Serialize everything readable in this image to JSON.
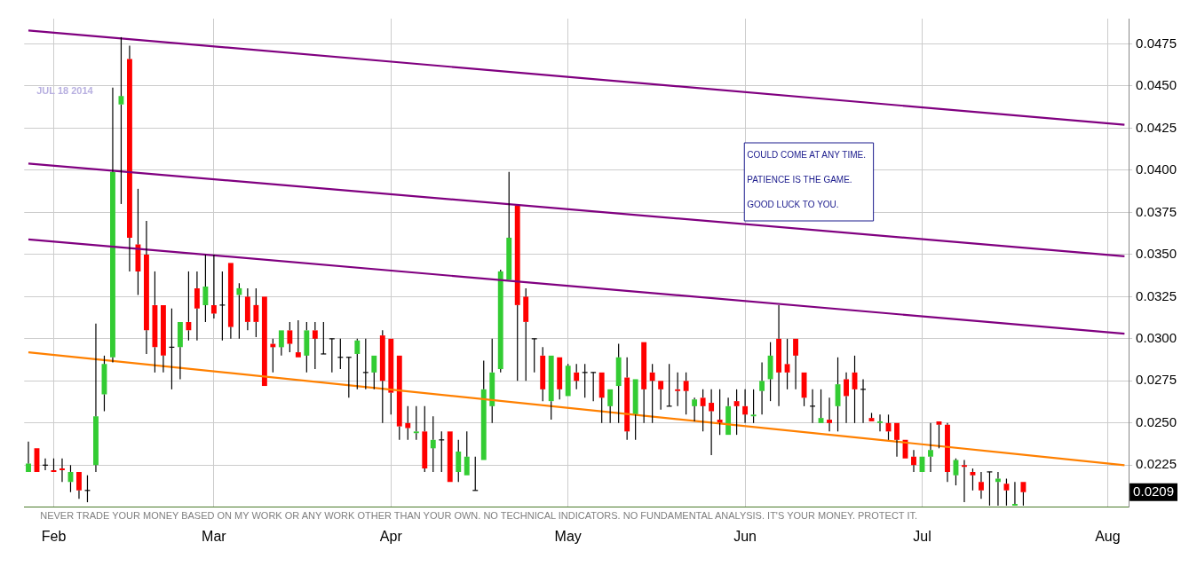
{
  "chart_data": {
    "type": "candlestick",
    "categories": [
      null,
      null,
      null,
      "Feb",
      null,
      null,
      null,
      null,
      null,
      null,
      null,
      null,
      null,
      null,
      null,
      null,
      null,
      null,
      null,
      null,
      null,
      null,
      "Mar",
      null,
      null,
      null,
      null,
      null,
      null,
      null,
      null,
      null,
      null,
      null,
      null,
      null,
      null,
      null,
      null,
      null,
      null,
      null,
      null,
      "Apr",
      null,
      null,
      null,
      null,
      null,
      null,
      null,
      null,
      null,
      null,
      null,
      null,
      null,
      null,
      null,
      null,
      null,
      null,
      null,
      null,
      "May",
      null,
      null,
      null,
      null,
      null,
      null,
      null,
      null,
      null,
      null,
      null,
      null,
      null,
      null,
      null,
      null,
      null,
      null,
      null,
      null,
      "Jun",
      null,
      null,
      null,
      null,
      null,
      null,
      null,
      null,
      null,
      null,
      null,
      null,
      null,
      null,
      null,
      null,
      null,
      null,
      null,
      null,
      "Jul",
      null,
      null,
      null,
      null,
      null,
      null,
      null,
      null,
      null,
      null,
      null,
      null,
      null,
      null,
      null,
      null,
      null,
      null,
      null,
      null,
      null,
      "Aug",
      null,
      null
    ],
    "ohlc": [
      [
        0.0221,
        0.0239,
        0.0221,
        0.0226
      ],
      [
        0.0235,
        0.0235,
        0.0221,
        0.0221
      ],
      [
        0.0225,
        0.0229,
        0.0222,
        0.0225
      ],
      [
        0.0222,
        0.0229,
        0.0221,
        0.0221
      ],
      [
        0.0223,
        0.0229,
        0.0215,
        0.0222
      ],
      [
        0.0215,
        0.0225,
        0.0209,
        0.0221
      ],
      [
        0.0221,
        0.0221,
        0.0205,
        0.021
      ],
      [
        0.021,
        0.0219,
        0.0203,
        0.021
      ],
      [
        0.0225,
        0.0309,
        0.0221,
        0.0254
      ],
      [
        0.0267,
        0.029,
        0.0257,
        0.0285
      ],
      [
        0.0289,
        0.0449,
        0.0286,
        0.0399
      ],
      [
        0.0439,
        0.0479,
        0.038,
        0.0444
      ],
      [
        0.0466,
        0.0474,
        0.034,
        0.036
      ],
      [
        0.0356,
        0.0389,
        0.0326,
        0.034
      ],
      [
        0.035,
        0.037,
        0.0291,
        0.0305
      ],
      [
        0.032,
        0.034,
        0.028,
        0.0295
      ],
      [
        0.032,
        0.032,
        0.028,
        0.029
      ],
      [
        0.0295,
        0.0318,
        0.027,
        0.0295
      ],
      [
        0.0295,
        0.031,
        0.0276,
        0.031
      ],
      [
        0.031,
        0.034,
        0.0299,
        0.0305
      ],
      [
        0.033,
        0.034,
        0.0299,
        0.0318
      ],
      [
        0.032,
        0.035,
        0.031,
        0.0331
      ],
      [
        0.032,
        0.035,
        0.0312,
        0.0315
      ],
      [
        0.032,
        0.034,
        0.0299,
        0.032
      ],
      [
        0.0345,
        0.0345,
        0.03,
        0.0307
      ],
      [
        0.0326,
        0.0333,
        0.03,
        0.033
      ],
      [
        0.0325,
        0.033,
        0.0305,
        0.031
      ],
      [
        0.032,
        0.033,
        0.0301,
        0.031
      ],
      [
        0.0325,
        0.0325,
        0.0272,
        0.0272
      ],
      [
        0.0297,
        0.03,
        0.028,
        0.0295
      ],
      [
        0.0295,
        0.0305,
        0.029,
        0.0305
      ],
      [
        0.0305,
        0.031,
        0.0292,
        0.0297
      ],
      [
        0.0292,
        0.0311,
        0.0289,
        0.0289
      ],
      [
        0.029,
        0.031,
        0.028,
        0.0305
      ],
      [
        0.0305,
        0.031,
        0.0282,
        0.03
      ],
      [
        0.0291,
        0.031,
        0.0291,
        0.0291
      ],
      [
        0.03,
        0.03,
        0.028,
        0.03
      ],
      [
        0.0289,
        0.03,
        0.0282,
        0.0289
      ],
      [
        0.0289,
        0.0289,
        0.0265,
        0.0289
      ],
      [
        0.0291,
        0.03,
        0.027,
        0.0299
      ],
      [
        0.028,
        0.03,
        0.027,
        0.028
      ],
      [
        0.028,
        0.029,
        0.027,
        0.029
      ],
      [
        0.0302,
        0.0305,
        0.025,
        0.0275
      ],
      [
        0.03,
        0.03,
        0.0255,
        0.0268
      ],
      [
        0.029,
        0.029,
        0.024,
        0.0248
      ],
      [
        0.025,
        0.026,
        0.024,
        0.0247
      ],
      [
        0.0244,
        0.026,
        0.024,
        0.0245
      ],
      [
        0.0245,
        0.026,
        0.0221,
        0.0223
      ],
      [
        0.0235,
        0.0254,
        0.0221,
        0.024
      ],
      [
        0.024,
        0.0245,
        0.0221,
        0.024
      ],
      [
        0.0245,
        0.0245,
        0.0215,
        0.0215
      ],
      [
        0.0221,
        0.024,
        0.0215,
        0.0233
      ],
      [
        0.0219,
        0.0245,
        0.0219,
        0.023
      ],
      [
        0.021,
        0.023,
        0.021,
        0.021
      ],
      [
        0.0228,
        0.0287,
        0.0228,
        0.027
      ],
      [
        0.026,
        0.03,
        0.025,
        0.028
      ],
      [
        0.0282,
        0.0341,
        0.028,
        0.034
      ],
      [
        0.0335,
        0.0399,
        0.0335,
        0.036
      ],
      [
        0.0379,
        0.0379,
        0.0275,
        0.032
      ],
      [
        0.0325,
        0.033,
        0.0275,
        0.031
      ],
      [
        0.03,
        0.03,
        0.028,
        0.03
      ],
      [
        0.029,
        0.0295,
        0.0263,
        0.027
      ],
      [
        0.0263,
        0.029,
        0.0252,
        0.029
      ],
      [
        0.0289,
        0.0289,
        0.0264,
        0.027
      ],
      [
        0.0266,
        0.0285,
        0.0266,
        0.0284
      ],
      [
        0.028,
        0.0285,
        0.027,
        0.0275
      ],
      [
        0.028,
        0.0285,
        0.0265,
        0.028
      ],
      [
        0.028,
        0.028,
        0.0263,
        0.028
      ],
      [
        0.028,
        0.028,
        0.025,
        0.0265
      ],
      [
        0.026,
        0.027,
        0.025,
        0.027
      ],
      [
        0.0272,
        0.0297,
        0.025,
        0.0289
      ],
      [
        0.0277,
        0.0289,
        0.024,
        0.0245
      ],
      [
        0.0255,
        0.0276,
        0.024,
        0.0276
      ],
      [
        0.0298,
        0.0298,
        0.025,
        0.027
      ],
      [
        0.028,
        0.0285,
        0.025,
        0.0275
      ],
      [
        0.0275,
        0.0275,
        0.0258,
        0.027
      ],
      [
        0.026,
        0.0285,
        0.026,
        0.026
      ],
      [
        0.027,
        0.028,
        0.026,
        0.0269
      ],
      [
        0.0275,
        0.028,
        0.0255,
        0.0269
      ],
      [
        0.026,
        0.0265,
        0.0251,
        0.0264
      ],
      [
        0.0265,
        0.027,
        0.0245,
        0.026
      ],
      [
        0.0262,
        0.027,
        0.0231,
        0.0257
      ],
      [
        0.0252,
        0.027,
        0.0243,
        0.025
      ],
      [
        0.0243,
        0.0265,
        0.0243,
        0.026
      ],
      [
        0.0263,
        0.027,
        0.0243,
        0.026
      ],
      [
        0.026,
        0.027,
        0.025,
        0.0255
      ],
      [
        0.0254,
        0.027,
        0.025,
        0.0255
      ],
      [
        0.0269,
        0.0286,
        0.0255,
        0.0275
      ],
      [
        0.0276,
        0.0298,
        0.0263,
        0.029
      ],
      [
        0.03,
        0.032,
        0.026,
        0.028
      ],
      [
        0.0285,
        0.03,
        0.027,
        0.028
      ],
      [
        0.03,
        0.03,
        0.027,
        0.029
      ],
      [
        0.028,
        0.028,
        0.026,
        0.0265
      ],
      [
        0.026,
        0.027,
        0.025,
        0.026
      ],
      [
        0.025,
        0.027,
        0.025,
        0.0253
      ],
      [
        0.0252,
        0.0265,
        0.0245,
        0.025
      ],
      [
        0.026,
        0.0289,
        0.0245,
        0.0273
      ],
      [
        0.0276,
        0.028,
        0.025,
        0.0266
      ],
      [
        0.028,
        0.029,
        0.025,
        0.027
      ],
      [
        0.027,
        0.0276,
        0.025,
        0.027
      ],
      [
        0.0253,
        0.0256,
        0.0251,
        0.0251
      ],
      [
        0.025,
        0.0255,
        0.0245,
        0.0251
      ],
      [
        0.025,
        0.0255,
        0.024,
        0.0245
      ],
      [
        0.025,
        0.025,
        0.023,
        0.024
      ],
      [
        0.024,
        0.024,
        0.0229,
        0.0229
      ],
      [
        0.023,
        0.0234,
        0.0221,
        0.0225
      ],
      [
        0.0221,
        0.023,
        0.0221,
        0.023
      ],
      [
        0.023,
        0.025,
        0.0221,
        0.0234
      ],
      [
        0.0251,
        0.0251,
        0.0235,
        0.0249
      ],
      [
        0.0249,
        0.025,
        0.0215,
        0.0221
      ],
      [
        0.0219,
        0.0229,
        0.0213,
        0.0228
      ],
      [
        0.0225,
        0.0228,
        0.0203,
        0.0224
      ],
      [
        0.0221,
        0.0223,
        0.021,
        0.0219
      ],
      [
        0.0215,
        0.0221,
        0.0205,
        0.021
      ],
      [
        0.0221,
        0.0221,
        0.0201,
        0.0221
      ],
      [
        0.0215,
        0.0221,
        0.0201,
        0.0217
      ],
      [
        0.0214,
        0.0217,
        0.0201,
        0.021
      ],
      [
        0.0201,
        0.0215,
        0.0201,
        0.0202
      ],
      [
        0.0215,
        0.0215,
        0.0201,
        0.0209
      ],
      null,
      null,
      null,
      null,
      null,
      null,
      null,
      null,
      null,
      null,
      null,
      null
    ],
    "colors": [
      "#33cc33",
      "#ff0000",
      "#000000",
      "#ff0000",
      "#ff0000",
      "#33cc33",
      "#ff0000",
      "#000000",
      "#33cc33",
      "#33cc33",
      "#33cc33",
      "#33cc33",
      "#ff0000",
      "#ff0000",
      "#ff0000",
      "#ff0000",
      "#ff0000",
      "#000000",
      "#33cc33",
      "#ff0000",
      "#ff0000",
      "#33cc33",
      "#ff0000",
      "#000000",
      "#ff0000",
      "#33cc33",
      "#ff0000",
      "#ff0000",
      "#ff0000",
      "#ff0000",
      "#33cc33",
      "#ff0000",
      "#ff0000",
      "#33cc33",
      "#ff0000",
      "#000000",
      "#000000",
      "#000000",
      "#000000",
      "#33cc33",
      "#000000",
      "#33cc33",
      "#ff0000",
      "#ff0000",
      "#ff0000",
      "#ff0000",
      "#33cc33",
      "#ff0000",
      "#33cc33",
      "#000000",
      "#ff0000",
      "#33cc33",
      "#33cc33",
      "#000000",
      "#33cc33",
      "#33cc33",
      "#33cc33",
      "#33cc33",
      "#ff0000",
      "#ff0000",
      "#000000",
      "#ff0000",
      "#33cc33",
      "#ff0000",
      "#33cc33",
      "#ff0000",
      "#000000",
      "#000000",
      "#ff0000",
      "#33cc33",
      "#33cc33",
      "#ff0000",
      "#33cc33",
      "#ff0000",
      "#ff0000",
      "#ff0000",
      "#000000",
      "#ff0000",
      "#ff0000",
      "#33cc33",
      "#ff0000",
      "#ff0000",
      "#ff0000",
      "#33cc33",
      "#ff0000",
      "#ff0000",
      "#33cc33",
      "#33cc33",
      "#33cc33",
      "#ff0000",
      "#ff0000",
      "#ff0000",
      "#ff0000",
      "#000000",
      "#33cc33",
      "#ff0000",
      "#33cc33",
      "#ff0000",
      "#ff0000",
      "#000000",
      "#ff0000",
      "#33cc33",
      "#ff0000",
      "#ff0000",
      "#ff0000",
      "#ff0000",
      "#33cc33",
      "#33cc33",
      "#ff0000",
      "#ff0000",
      "#33cc33",
      "#ff0000",
      "#ff0000",
      "#ff0000",
      "#000000",
      "#33cc33",
      "#ff0000",
      "#33cc33",
      "#ff0000",
      null,
      null,
      null,
      null,
      null,
      null,
      null,
      null,
      null,
      null,
      null,
      null
    ],
    "series": [
      {
        "type": "line",
        "color": "#800080",
        "values": [
          0.0483,
          null,
          null,
          null,
          null,
          null,
          null,
          null,
          null,
          null,
          null,
          null,
          null,
          null,
          null,
          null,
          null,
          null,
          null,
          null,
          null,
          null,
          null,
          null,
          null,
          null,
          null,
          null,
          null,
          null,
          null,
          null,
          null,
          null,
          null,
          null,
          null,
          null,
          null,
          null,
          null,
          null,
          null,
          null,
          null,
          null,
          null,
          null,
          null,
          null,
          null,
          null,
          null,
          null,
          null,
          null,
          null,
          null,
          null,
          null,
          null,
          null,
          null,
          null,
          null,
          null,
          null,
          null,
          null,
          null,
          null,
          null,
          null,
          null,
          null,
          null,
          null,
          null,
          null,
          null,
          null,
          null,
          null,
          null,
          null,
          null,
          null,
          null,
          null,
          null,
          null,
          null,
          null,
          null,
          null,
          null,
          null,
          null,
          null,
          null,
          null,
          null,
          null,
          null,
          null,
          null,
          null,
          null,
          null,
          null,
          null,
          null,
          null,
          null,
          null,
          null,
          null,
          null,
          null,
          null,
          null,
          null,
          null,
          null,
          null,
          null,
          null,
          null,
          null,
          null,
          0.0427
        ]
      },
      {
        "type": "line",
        "color": "#800080",
        "values": [
          0.0404,
          null,
          null,
          null,
          null,
          null,
          null,
          null,
          null,
          null,
          null,
          null,
          null,
          null,
          null,
          null,
          null,
          null,
          null,
          null,
          null,
          null,
          null,
          null,
          null,
          null,
          null,
          null,
          null,
          null,
          null,
          null,
          null,
          null,
          null,
          null,
          null,
          null,
          null,
          null,
          null,
          null,
          null,
          null,
          null,
          null,
          null,
          null,
          null,
          null,
          null,
          null,
          null,
          null,
          null,
          null,
          null,
          null,
          null,
          null,
          null,
          null,
          null,
          null,
          null,
          null,
          null,
          null,
          null,
          null,
          null,
          null,
          null,
          null,
          null,
          null,
          null,
          null,
          null,
          null,
          null,
          null,
          null,
          null,
          null,
          null,
          null,
          null,
          null,
          null,
          null,
          null,
          null,
          null,
          null,
          null,
          null,
          null,
          null,
          null,
          null,
          null,
          null,
          null,
          null,
          null,
          null,
          null,
          null,
          null,
          null,
          null,
          null,
          null,
          null,
          null,
          null,
          null,
          null,
          null,
          null,
          null,
          null,
          null,
          null,
          null,
          null,
          null,
          null,
          null,
          0.0349
        ]
      },
      {
        "type": "line",
        "color": "#800080",
        "values": [
          0.0359,
          null,
          null,
          null,
          null,
          null,
          null,
          null,
          null,
          null,
          null,
          null,
          null,
          null,
          null,
          null,
          null,
          null,
          null,
          null,
          null,
          null,
          null,
          null,
          null,
          null,
          null,
          null,
          null,
          null,
          null,
          null,
          null,
          null,
          null,
          null,
          null,
          null,
          null,
          null,
          null,
          null,
          null,
          null,
          null,
          null,
          null,
          null,
          null,
          null,
          null,
          null,
          null,
          null,
          null,
          null,
          null,
          null,
          null,
          null,
          null,
          null,
          null,
          null,
          null,
          null,
          null,
          null,
          null,
          null,
          null,
          null,
          null,
          null,
          null,
          null,
          null,
          null,
          null,
          null,
          null,
          null,
          null,
          null,
          null,
          null,
          null,
          null,
          null,
          null,
          null,
          null,
          null,
          null,
          null,
          null,
          null,
          null,
          null,
          null,
          null,
          null,
          null,
          null,
          null,
          null,
          null,
          null,
          null,
          null,
          null,
          null,
          null,
          null,
          null,
          null,
          null,
          null,
          null,
          null,
          null,
          null,
          null,
          null,
          null,
          null,
          null,
          null,
          null,
          null,
          0.0303
        ]
      },
      {
        "type": "line",
        "color": "#ff8000",
        "values": [
          0.0292,
          null,
          null,
          null,
          null,
          null,
          null,
          null,
          null,
          null,
          null,
          null,
          null,
          null,
          null,
          null,
          null,
          null,
          null,
          null,
          null,
          null,
          null,
          null,
          null,
          null,
          null,
          null,
          null,
          null,
          null,
          null,
          null,
          null,
          null,
          null,
          null,
          null,
          null,
          null,
          null,
          null,
          null,
          null,
          null,
          null,
          null,
          null,
          null,
          null,
          null,
          null,
          null,
          null,
          null,
          null,
          null,
          null,
          null,
          null,
          null,
          null,
          null,
          null,
          null,
          null,
          null,
          null,
          null,
          null,
          null,
          null,
          null,
          null,
          null,
          null,
          null,
          null,
          null,
          null,
          null,
          null,
          null,
          null,
          null,
          null,
          null,
          null,
          null,
          null,
          null,
          null,
          null,
          null,
          null,
          null,
          null,
          null,
          null,
          null,
          null,
          null,
          null,
          null,
          null,
          null,
          null,
          null,
          null,
          null,
          null,
          null,
          null,
          null,
          null,
          null,
          null,
          null,
          null,
          null,
          null,
          null,
          null,
          null,
          null,
          null,
          null,
          null,
          null,
          null,
          0.0225
        ]
      }
    ],
    "ylim": [
      0.02,
      0.049
    ],
    "yticks": [
      0.0225,
      {
        "value": 0.025,
        "label": "0.0250"
      },
      0.0275,
      {
        "value": 0.03,
        "label": "0.0300"
      },
      0.0325,
      {
        "value": 0.035,
        "label": "0.0350"
      },
      0.0375,
      {
        "value": 0.04,
        "label": "0.0400"
      },
      0.0425,
      {
        "value": 0.045,
        "label": "0.0450"
      },
      0.0475
    ],
    "grid": true,
    "annotations": [
      "JUL 18 2014",
      "COULD COME AT ANY TIME.",
      "PATIENCE IS THE GAME.",
      "GOOD LUCK TO YOU.",
      "0.0209",
      "NEVER TRADE YOUR MONEY BASED ON MY WORK OR ANY WORK OTHER THAN YOUR OWN. NO TECHNICAL INDICATORS. NO FUNDAMENTAL ANALYSIS. IT'S YOUR MONEY. PROTECT IT."
    ]
  }
}
